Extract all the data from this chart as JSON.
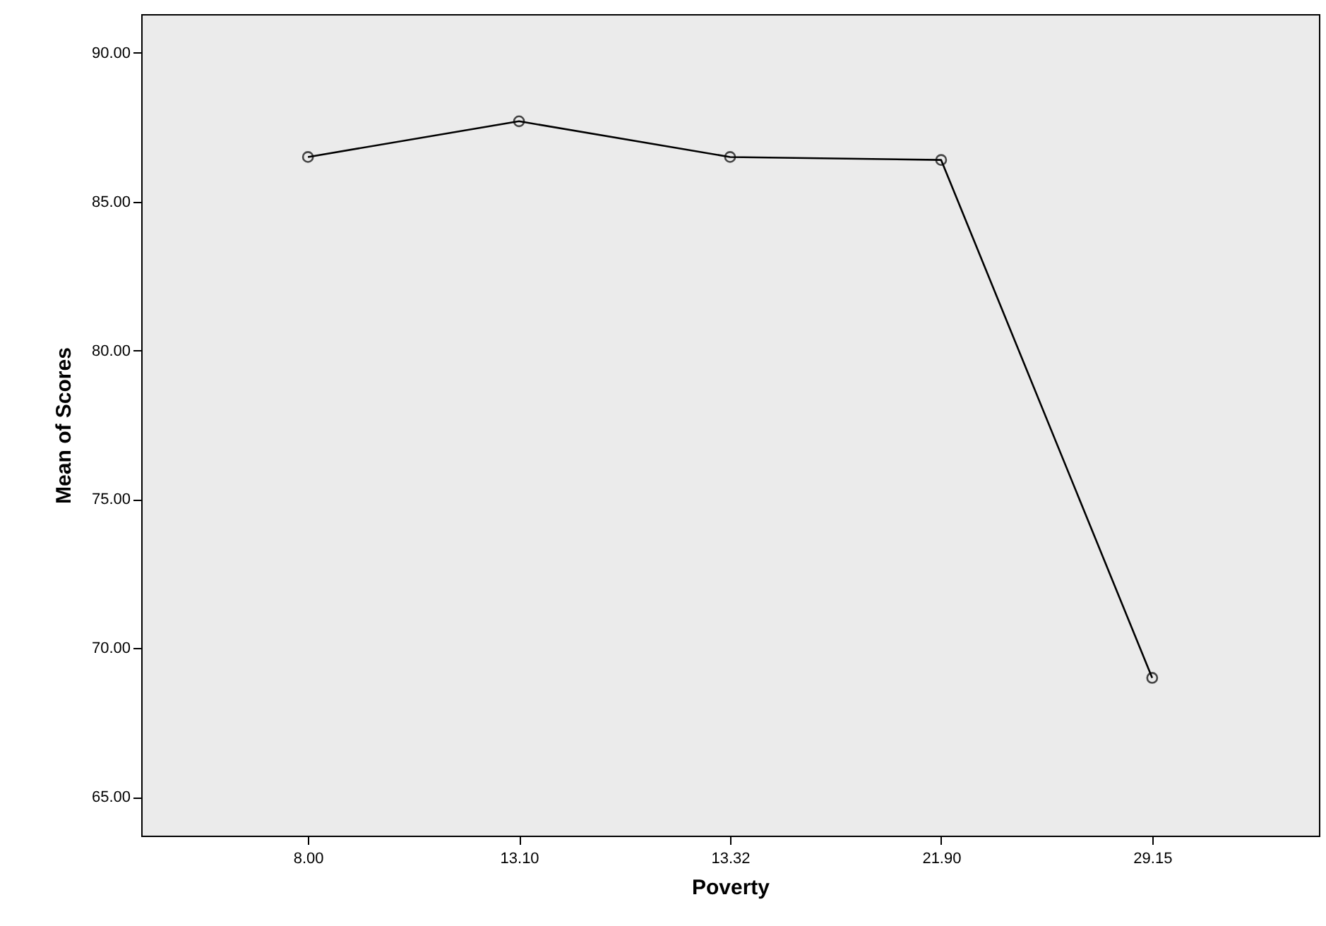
{
  "chart_data": {
    "type": "line",
    "xlabel": "Poverty",
    "ylabel": "Mean of Scores",
    "categories": [
      "8.00",
      "13.10",
      "13.32",
      "21.90",
      "29.15"
    ],
    "series": [
      {
        "color": "#000000",
        "values": [
          86.5,
          87.7,
          86.5,
          86.4,
          69.0
        ]
      }
    ],
    "ylim": [
      63.7,
      91.3
    ],
    "yticks": [
      {
        "value": 65,
        "label": "65.00"
      },
      {
        "value": 70,
        "label": "70.00"
      },
      {
        "value": 75,
        "label": "75.00"
      },
      {
        "value": 80,
        "label": "80.00"
      },
      {
        "value": 85,
        "label": "85.00"
      },
      {
        "value": 90,
        "label": "90.00"
      }
    ],
    "grid": false,
    "marker": "circle",
    "line_style": "solid"
  }
}
